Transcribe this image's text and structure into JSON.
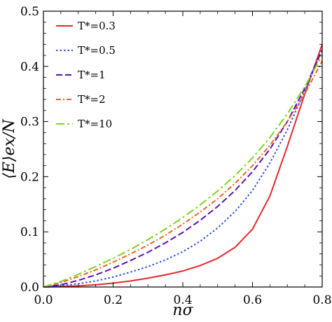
{
  "chart_data": {
    "type": "line",
    "xlabel": "nσ",
    "ylabel": "⟨E⟩ex/N",
    "xlim": [
      0.0,
      0.8
    ],
    "ylim": [
      0.0,
      0.5
    ],
    "x_ticks": [
      "0.0",
      "0.2",
      "0.4",
      "0.6",
      "0.8"
    ],
    "y_ticks": [
      "0.0",
      "0.1",
      "0.2",
      "0.3",
      "0.4",
      "0.5"
    ],
    "grid": false,
    "legend_position": "top-left",
    "x": [
      0.0,
      0.05,
      0.1,
      0.15,
      0.2,
      0.25,
      0.3,
      0.35,
      0.4,
      0.45,
      0.5,
      0.55,
      0.6,
      0.65,
      0.7,
      0.75,
      0.8
    ],
    "series": [
      {
        "name": "T*=0.3",
        "color": "#e8272a",
        "dash": "solid",
        "values": [
          0.0,
          0.001,
          0.002,
          0.004,
          0.007,
          0.011,
          0.016,
          0.022,
          0.029,
          0.039,
          0.052,
          0.072,
          0.105,
          0.165,
          0.255,
          0.35,
          0.44
        ]
      },
      {
        "name": "T*=0.5",
        "color": "#2b50e0",
        "dash": "dotted",
        "values": [
          0.0,
          0.002,
          0.006,
          0.011,
          0.018,
          0.027,
          0.037,
          0.049,
          0.064,
          0.083,
          0.107,
          0.137,
          0.175,
          0.225,
          0.285,
          0.355,
          0.43
        ]
      },
      {
        "name": "T*=1",
        "color": "#5a10b8",
        "dash": "dashed",
        "values": [
          0.0,
          0.004,
          0.012,
          0.022,
          0.034,
          0.048,
          0.063,
          0.08,
          0.099,
          0.121,
          0.146,
          0.175,
          0.209,
          0.25,
          0.3,
          0.36,
          0.43
        ]
      },
      {
        "name": "T*=2",
        "color": "#f0641e",
        "dash": "dashdot",
        "values": [
          0.0,
          0.008,
          0.019,
          0.031,
          0.045,
          0.06,
          0.076,
          0.094,
          0.114,
          0.136,
          0.16,
          0.188,
          0.22,
          0.257,
          0.3,
          0.35,
          0.41
        ]
      },
      {
        "name": "T*=10",
        "color": "#7ed321",
        "dash": "longdashdot",
        "values": [
          0.0,
          0.01,
          0.023,
          0.037,
          0.052,
          0.068,
          0.086,
          0.105,
          0.126,
          0.149,
          0.174,
          0.202,
          0.234,
          0.271,
          0.314,
          0.363,
          0.42
        ]
      }
    ]
  }
}
